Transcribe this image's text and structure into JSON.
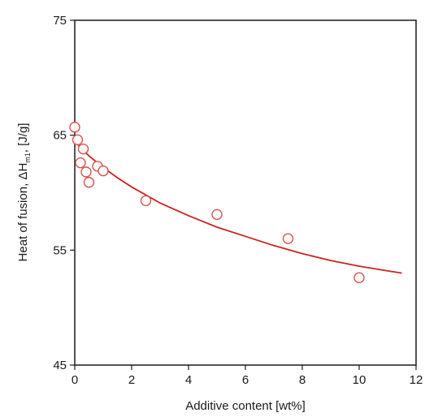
{
  "chart_data": {
    "type": "scatter",
    "xlabel": "Additive content [wt%]",
    "ylabel": {
      "prefix": "Heat of fusion, ",
      "delta": "ΔH",
      "subscript": "m1",
      "suffix": ", [J/g]"
    },
    "xlim": [
      0,
      12
    ],
    "ylim": [
      45,
      75
    ],
    "x_ticks": [
      0,
      2,
      4,
      6,
      8,
      10,
      12
    ],
    "y_ticks": [
      45,
      55,
      65,
      75
    ],
    "grid": false,
    "legend": "none",
    "marker_color": "#d9534f",
    "line_color": "#cc2222",
    "series": [
      {
        "kind": "points",
        "x": [
          0,
          0.1,
          0.2,
          0.3,
          0.4,
          0.5,
          0.8,
          1.0,
          2.5,
          5.0,
          7.5,
          10.0
        ],
        "y": [
          65.7,
          64.6,
          62.6,
          63.8,
          61.8,
          60.9,
          62.3,
          61.9,
          59.3,
          58.1,
          56.0,
          52.6
        ]
      },
      {
        "kind": "fit",
        "x": [
          0,
          0.25,
          0.5,
          1.0,
          1.5,
          2.0,
          2.5,
          3.0,
          4.0,
          5.0,
          6.0,
          7.0,
          8.0,
          9.0,
          10.0,
          11.0,
          11.5
        ],
        "y": [
          64.5,
          63.8,
          63.2,
          62.2,
          61.3,
          60.5,
          59.8,
          59.1,
          58.0,
          57.0,
          56.2,
          55.4,
          54.7,
          54.1,
          53.6,
          53.2,
          53.0
        ]
      }
    ]
  }
}
